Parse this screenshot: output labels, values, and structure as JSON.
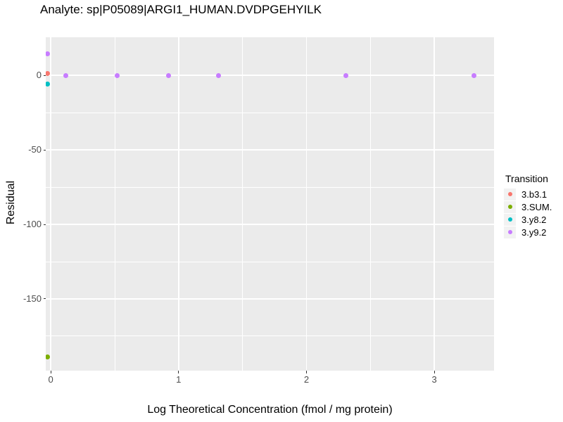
{
  "chart_data": {
    "type": "scatter",
    "title": "Analyte: sp|P05089|ARGI1_HUMAN.DVDPGEHYILK",
    "xlabel": "Log Theoretical Concentration (fmol / mg protein)",
    "ylabel": "Residual",
    "xlim": [
      -0.039,
      3.467
    ],
    "ylim": [
      -198.2,
      25.6
    ],
    "x_ticks": {
      "values": [
        0,
        1,
        2,
        3
      ],
      "labels": [
        "0",
        "1",
        "2",
        "3"
      ]
    },
    "y_ticks": {
      "values": [
        0,
        -50,
        -100,
        -150
      ],
      "labels": [
        "0",
        "-50",
        "-100",
        "-150"
      ]
    },
    "x_minor": [
      0.5,
      1.5,
      2.5
    ],
    "y_minor": [
      -25,
      -75,
      -125,
      -175
    ],
    "grid": true,
    "legend": {
      "title": "Transition",
      "position": "right"
    },
    "series": [
      {
        "name": "3.b3.1",
        "color": "#F8766D",
        "points": [
          {
            "x": -0.026,
            "y": 1.2
          }
        ]
      },
      {
        "name": "3.SUM.",
        "color": "#7CAE00",
        "points": [
          {
            "x": -0.026,
            "y": -189
          }
        ]
      },
      {
        "name": "3.y8.2",
        "color": "#00BFC4",
        "points": [
          {
            "x": -0.026,
            "y": -5.7
          }
        ]
      },
      {
        "name": "3.y9.2",
        "color": "#C77CFF",
        "points": [
          {
            "x": -0.026,
            "y": 14.6
          },
          {
            "x": 0.12,
            "y": -0.3
          },
          {
            "x": 0.52,
            "y": -0.3
          },
          {
            "x": 0.92,
            "y": -0.3
          },
          {
            "x": 1.31,
            "y": -0.3
          },
          {
            "x": 2.31,
            "y": -0.3
          },
          {
            "x": 3.31,
            "y": -0.3
          }
        ]
      }
    ],
    "colors": {
      "panel_bg": "#EBEBEB",
      "gridline": "#FFFFFF",
      "legend_key_bg": "#F2F2F2",
      "tick_label": "#4D4D4D",
      "tick_mark": "#333333",
      "title_text": "#000000"
    }
  }
}
